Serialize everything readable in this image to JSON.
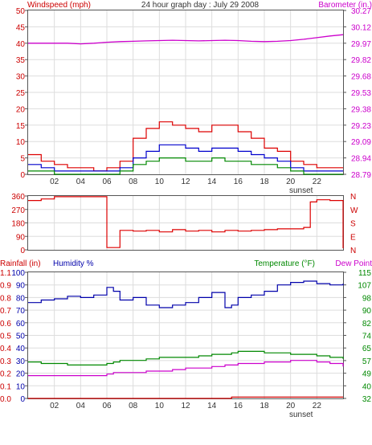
{
  "header": {
    "title": "24 hour graph day : July 29 2008",
    "wind_label": "Windspeed (mph)",
    "baro_label": "Barometer (in.)"
  },
  "footer": {
    "rain_label": "Rainfall (in)",
    "humidity_label": "Humidity %",
    "temp_label": "Temperature (°F)",
    "dew_label": "Dew Point"
  },
  "colors": {
    "wind_gust": "#dd0000",
    "wind_avg": "#0000cc",
    "wind_low": "#008800",
    "barometer": "#cc00cc",
    "direction": "#dd0000",
    "humidity": "#0000aa",
    "temperature": "#008800",
    "dewpoint": "#cc00cc",
    "rain": "#cc0000",
    "axis_red": "#cc0000",
    "axis_magenta": "#cc00cc",
    "axis_blue": "#0000aa",
    "axis_green": "#008800",
    "axis_dark": "#333333"
  },
  "chart_data": [
    {
      "type": "line",
      "panel": "wind-barometer",
      "x_hours": [
        0,
        1,
        2,
        3,
        4,
        5,
        6,
        7,
        8,
        9,
        10,
        11,
        12,
        13,
        14,
        15,
        16,
        17,
        18,
        19,
        20,
        21,
        22,
        23,
        24
      ],
      "x_tick_labels": [
        "02",
        "04",
        "06",
        "08",
        "10",
        "12",
        "14",
        "16",
        "18",
        "20",
        "22"
      ],
      "x_tick_hours": [
        2,
        4,
        6,
        8,
        10,
        12,
        14,
        16,
        18,
        20,
        22
      ],
      "marker_label": "sunset",
      "marker_hour": 20.8,
      "ylim": [
        0,
        50
      ],
      "y_ticks": [
        0,
        5,
        10,
        15,
        20,
        25,
        30,
        35,
        40,
        45,
        50
      ],
      "y2_ticks": [
        "28.79",
        "28.94",
        "29.09",
        "29.23",
        "29.38",
        "29.53",
        "29.68",
        "29.82",
        "29.97",
        "30.12",
        "30.27"
      ],
      "series": [
        {
          "role": "gust",
          "values": [
            6,
            4,
            3,
            2,
            2,
            1,
            2,
            4,
            11,
            14,
            16,
            15,
            14,
            13,
            15,
            15,
            13,
            11,
            8,
            7,
            4,
            3,
            2,
            2,
            2
          ]
        },
        {
          "role": "average",
          "values": [
            3,
            2,
            1,
            1,
            1,
            1,
            1,
            2,
            5,
            7,
            9,
            9,
            8,
            7,
            8,
            8,
            7,
            6,
            5,
            4,
            2,
            1,
            1,
            1,
            1
          ]
        },
        {
          "role": "low",
          "values": [
            1,
            1,
            0,
            0,
            0,
            0,
            0,
            1,
            3,
            4,
            5,
            5,
            4,
            4,
            5,
            4,
            4,
            3,
            3,
            2,
            1,
            0,
            0,
            0,
            0
          ]
        },
        {
          "role": "barometer",
          "values": [
            40,
            40,
            40,
            40,
            39.8,
            40,
            40.3,
            40.5,
            40.6,
            40.7,
            40.8,
            40.9,
            40.8,
            40.7,
            40.8,
            40.9,
            40.8,
            40.6,
            40.5,
            40.6,
            40.8,
            41.2,
            41.7,
            42.2,
            42.6
          ]
        }
      ]
    },
    {
      "type": "line",
      "panel": "wind-direction",
      "x_hours": [
        0,
        1,
        2,
        3,
        4,
        5,
        5.5,
        6,
        7,
        8,
        9,
        10,
        11,
        12,
        13,
        14,
        15,
        16,
        17,
        18,
        19,
        20,
        21,
        21.5,
        22,
        23,
        24
      ],
      "ylim": [
        0,
        360
      ],
      "y_ticks": [
        0,
        90,
        180,
        270,
        360
      ],
      "y2_ticks": [
        "N",
        "E",
        "S",
        "W",
        "N"
      ],
      "series": [
        {
          "role": "direction",
          "values": [
            330,
            340,
            355,
            355,
            355,
            355,
            355,
            15,
            130,
            125,
            130,
            120,
            135,
            125,
            130,
            120,
            130,
            125,
            130,
            135,
            140,
            140,
            150,
            320,
            335,
            330,
            10
          ]
        }
      ]
    },
    {
      "type": "line",
      "panel": "humidity-temperature",
      "x_hours": [
        0,
        1,
        2,
        3,
        4,
        5,
        6,
        6.5,
        7,
        8,
        9,
        10,
        11,
        12,
        13,
        14,
        15,
        15.5,
        16,
        17,
        18,
        19,
        20,
        21,
        22,
        23,
        24
      ],
      "humidity_ylim": [
        0,
        100
      ],
      "humidity_ticks": [
        0,
        10,
        20,
        30,
        40,
        50,
        60,
        70,
        80,
        90,
        100
      ],
      "rain_tick_labels": [
        "0.0",
        "0.1",
        "0.2",
        "0.3",
        "0.4",
        "0.5",
        "0.6",
        "0.7",
        "0.8",
        "0.9",
        "1.1"
      ],
      "temp_ylim": [
        32,
        115
      ],
      "temp_ticks": [
        32,
        40,
        49,
        57,
        65,
        74,
        82,
        90,
        98,
        107,
        115
      ],
      "series": [
        {
          "role": "humidity",
          "values": [
            76,
            78,
            79,
            81,
            80,
            82,
            88,
            85,
            78,
            80,
            74,
            72,
            74,
            76,
            80,
            84,
            72,
            74,
            80,
            82,
            85,
            90,
            92,
            93,
            91,
            90,
            91
          ]
        },
        {
          "role": "temperature",
          "values": [
            56,
            55,
            55,
            54,
            54,
            54,
            55,
            56,
            57,
            57,
            58,
            59,
            59,
            59,
            60,
            61,
            61,
            62,
            63,
            63,
            62,
            62,
            61,
            61,
            60,
            59,
            58
          ]
        },
        {
          "role": "dewpoint",
          "values": [
            47,
            47,
            47,
            47,
            47,
            47,
            48,
            49,
            49,
            49,
            50,
            50,
            51,
            52,
            52,
            53,
            54,
            54,
            55,
            55,
            56,
            56,
            57,
            57,
            56,
            55,
            53
          ]
        },
        {
          "role": "rainfall",
          "values": [
            0,
            0,
            0,
            0,
            0,
            0,
            0,
            0,
            0,
            0,
            0,
            0,
            0,
            0,
            0,
            0,
            0,
            0.01,
            0.01,
            0.01,
            0.01,
            0.01,
            0.01,
            0.01,
            0.01,
            0.01,
            0.01
          ]
        }
      ]
    }
  ]
}
